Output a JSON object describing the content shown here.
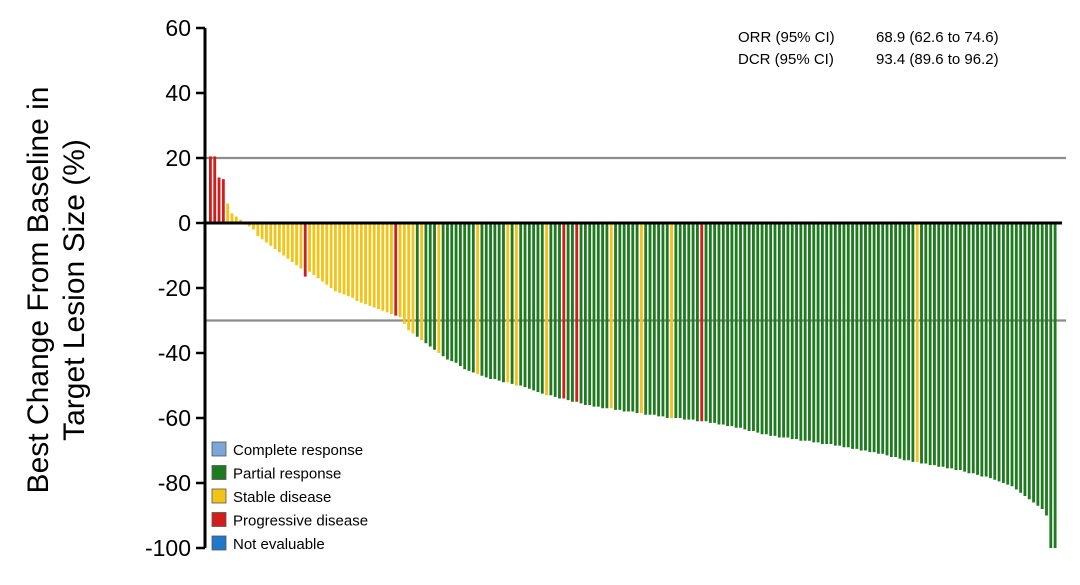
{
  "chart_data": {
    "type": "bar",
    "ylabel_line1": "Best Change From Baseline in",
    "ylabel_line2": "Target Lesion Size (%)",
    "ylim": [
      -100,
      60
    ],
    "yticks": [
      60,
      40,
      20,
      0,
      -20,
      -40,
      -60,
      -80,
      -100
    ],
    "reference_lines": [
      20,
      -30
    ],
    "grid": false,
    "stats": [
      {
        "label": "ORR (95% CI)",
        "value": "68.9 (62.6 to 74.6)"
      },
      {
        "label": "DCR (95% CI)",
        "value": "93.4 (89.6 to 96.2)"
      }
    ],
    "legend_position": "bottom-left",
    "legend": [
      {
        "key": "CR",
        "label": "Complete response",
        "color": "#7aa6d8"
      },
      {
        "key": "PR",
        "label": "Partial response",
        "color": "#1e7a1e"
      },
      {
        "key": "SD",
        "label": "Stable disease",
        "color": "#f2c418"
      },
      {
        "key": "PD",
        "label": "Progressive disease",
        "color": "#d21d1d"
      },
      {
        "key": "NE",
        "label": "Not evaluable",
        "color": "#1f78c8"
      }
    ],
    "bars": [
      {
        "value": 20.5,
        "response": "PD"
      },
      {
        "value": 20.5,
        "response": "PD"
      },
      {
        "value": 14,
        "response": "PD"
      },
      {
        "value": 13.5,
        "response": "PD"
      },
      {
        "value": 6,
        "response": "SD"
      },
      {
        "value": 3,
        "response": "SD"
      },
      {
        "value": 2,
        "response": "SD"
      },
      {
        "value": 1,
        "response": "SD"
      },
      {
        "value": -0.5,
        "response": "SD"
      },
      {
        "value": -1,
        "response": "SD"
      },
      {
        "value": -2,
        "response": "SD"
      },
      {
        "value": -4,
        "response": "SD"
      },
      {
        "value": -5,
        "response": "SD"
      },
      {
        "value": -6,
        "response": "SD"
      },
      {
        "value": -7,
        "response": "SD"
      },
      {
        "value": -8,
        "response": "SD"
      },
      {
        "value": -9,
        "response": "SD"
      },
      {
        "value": -10,
        "response": "SD"
      },
      {
        "value": -11,
        "response": "SD"
      },
      {
        "value": -12,
        "response": "SD"
      },
      {
        "value": -13,
        "response": "SD"
      },
      {
        "value": -14,
        "response": "SD"
      },
      {
        "value": -16.5,
        "response": "PD"
      },
      {
        "value": -15,
        "response": "SD"
      },
      {
        "value": -16,
        "response": "SD"
      },
      {
        "value": -17,
        "response": "SD"
      },
      {
        "value": -18,
        "response": "SD"
      },
      {
        "value": -19,
        "response": "SD"
      },
      {
        "value": -20,
        "response": "SD"
      },
      {
        "value": -21,
        "response": "SD"
      },
      {
        "value": -21.5,
        "response": "SD"
      },
      {
        "value": -22,
        "response": "SD"
      },
      {
        "value": -22.5,
        "response": "SD"
      },
      {
        "value": -23,
        "response": "SD"
      },
      {
        "value": -24,
        "response": "SD"
      },
      {
        "value": -24.5,
        "response": "SD"
      },
      {
        "value": -25,
        "response": "SD"
      },
      {
        "value": -25.5,
        "response": "SD"
      },
      {
        "value": -26,
        "response": "SD"
      },
      {
        "value": -26.5,
        "response": "SD"
      },
      {
        "value": -27,
        "response": "SD"
      },
      {
        "value": -27.5,
        "response": "SD"
      },
      {
        "value": -28,
        "response": "SD"
      },
      {
        "value": -28.5,
        "response": "PD"
      },
      {
        "value": -29,
        "response": "SD"
      },
      {
        "value": -31,
        "response": "SD"
      },
      {
        "value": -33,
        "response": "SD"
      },
      {
        "value": -34,
        "response": "SD"
      },
      {
        "value": -35,
        "response": "PR"
      },
      {
        "value": -36,
        "response": "SD"
      },
      {
        "value": -37,
        "response": "PR"
      },
      {
        "value": -38,
        "response": "PR"
      },
      {
        "value": -39,
        "response": "PR"
      },
      {
        "value": -40,
        "response": "SD"
      },
      {
        "value": -41,
        "response": "PR"
      },
      {
        "value": -42,
        "response": "PR"
      },
      {
        "value": -42.5,
        "response": "PR"
      },
      {
        "value": -43,
        "response": "PR"
      },
      {
        "value": -44,
        "response": "PR"
      },
      {
        "value": -45,
        "response": "PR"
      },
      {
        "value": -45.5,
        "response": "PR"
      },
      {
        "value": -46,
        "response": "PR"
      },
      {
        "value": -46.5,
        "response": "SD"
      },
      {
        "value": -47,
        "response": "PR"
      },
      {
        "value": -47.5,
        "response": "PR"
      },
      {
        "value": -48,
        "response": "PR"
      },
      {
        "value": -48,
        "response": "PR"
      },
      {
        "value": -48.5,
        "response": "PR"
      },
      {
        "value": -49,
        "response": "PR"
      },
      {
        "value": -49,
        "response": "SD"
      },
      {
        "value": -49.5,
        "response": "PR"
      },
      {
        "value": -50,
        "response": "SD"
      },
      {
        "value": -50,
        "response": "PR"
      },
      {
        "value": -50.5,
        "response": "PR"
      },
      {
        "value": -51,
        "response": "PR"
      },
      {
        "value": -51.5,
        "response": "PR"
      },
      {
        "value": -52,
        "response": "PR"
      },
      {
        "value": -52.5,
        "response": "PR"
      },
      {
        "value": -53,
        "response": "SD"
      },
      {
        "value": -53,
        "response": "PR"
      },
      {
        "value": -53.5,
        "response": "PR"
      },
      {
        "value": -54,
        "response": "PR"
      },
      {
        "value": -54,
        "response": "PD"
      },
      {
        "value": -54.5,
        "response": "PR"
      },
      {
        "value": -55,
        "response": "PR"
      },
      {
        "value": -55,
        "response": "PD"
      },
      {
        "value": -55.5,
        "response": "PR"
      },
      {
        "value": -56,
        "response": "PR"
      },
      {
        "value": -56,
        "response": "PR"
      },
      {
        "value": -56.5,
        "response": "PR"
      },
      {
        "value": -56.5,
        "response": "PR"
      },
      {
        "value": -57,
        "response": "PR"
      },
      {
        "value": -57,
        "response": "PR"
      },
      {
        "value": -57,
        "response": "SD"
      },
      {
        "value": -57.5,
        "response": "PR"
      },
      {
        "value": -57.5,
        "response": "PR"
      },
      {
        "value": -58,
        "response": "PR"
      },
      {
        "value": -58,
        "response": "PR"
      },
      {
        "value": -58,
        "response": "PR"
      },
      {
        "value": -58.5,
        "response": "PR"
      },
      {
        "value": -58.5,
        "response": "SD"
      },
      {
        "value": -59,
        "response": "PR"
      },
      {
        "value": -59,
        "response": "PR"
      },
      {
        "value": -59,
        "response": "PR"
      },
      {
        "value": -59.5,
        "response": "PR"
      },
      {
        "value": -59.5,
        "response": "PR"
      },
      {
        "value": -60,
        "response": "PR"
      },
      {
        "value": -60,
        "response": "SD"
      },
      {
        "value": -60,
        "response": "PR"
      },
      {
        "value": -60,
        "response": "PR"
      },
      {
        "value": -60.5,
        "response": "PR"
      },
      {
        "value": -60.5,
        "response": "PR"
      },
      {
        "value": -60.5,
        "response": "PR"
      },
      {
        "value": -61,
        "response": "PR"
      },
      {
        "value": -61,
        "response": "PD"
      },
      {
        "value": -61,
        "response": "PR"
      },
      {
        "value": -61.5,
        "response": "PR"
      },
      {
        "value": -61.5,
        "response": "PR"
      },
      {
        "value": -62,
        "response": "PR"
      },
      {
        "value": -62,
        "response": "PR"
      },
      {
        "value": -62.5,
        "response": "PR"
      },
      {
        "value": -62.5,
        "response": "PR"
      },
      {
        "value": -63,
        "response": "PR"
      },
      {
        "value": -63,
        "response": "PR"
      },
      {
        "value": -63.5,
        "response": "PR"
      },
      {
        "value": -64,
        "response": "PR"
      },
      {
        "value": -64,
        "response": "PR"
      },
      {
        "value": -64.5,
        "response": "PR"
      },
      {
        "value": -65,
        "response": "PR"
      },
      {
        "value": -65,
        "response": "PR"
      },
      {
        "value": -65.5,
        "response": "PR"
      },
      {
        "value": -65.5,
        "response": "PR"
      },
      {
        "value": -66,
        "response": "PR"
      },
      {
        "value": -66,
        "response": "PR"
      },
      {
        "value": -66,
        "response": "PR"
      },
      {
        "value": -66.5,
        "response": "PR"
      },
      {
        "value": -66.5,
        "response": "PR"
      },
      {
        "value": -67,
        "response": "PR"
      },
      {
        "value": -67,
        "response": "PR"
      },
      {
        "value": -67,
        "response": "PR"
      },
      {
        "value": -67.5,
        "response": "PR"
      },
      {
        "value": -67.5,
        "response": "PR"
      },
      {
        "value": -68,
        "response": "PR"
      },
      {
        "value": -68,
        "response": "PR"
      },
      {
        "value": -68,
        "response": "PR"
      },
      {
        "value": -68.5,
        "response": "PR"
      },
      {
        "value": -68.5,
        "response": "PR"
      },
      {
        "value": -69,
        "response": "PR"
      },
      {
        "value": -69,
        "response": "PR"
      },
      {
        "value": -69.5,
        "response": "PR"
      },
      {
        "value": -69.5,
        "response": "PR"
      },
      {
        "value": -70,
        "response": "PR"
      },
      {
        "value": -70,
        "response": "PR"
      },
      {
        "value": -70.5,
        "response": "PR"
      },
      {
        "value": -70.5,
        "response": "PR"
      },
      {
        "value": -71,
        "response": "PR"
      },
      {
        "value": -71,
        "response": "PR"
      },
      {
        "value": -71.5,
        "response": "PR"
      },
      {
        "value": -72,
        "response": "PR"
      },
      {
        "value": -72,
        "response": "PR"
      },
      {
        "value": -72.5,
        "response": "PR"
      },
      {
        "value": -73,
        "response": "PR"
      },
      {
        "value": -73,
        "response": "PR"
      },
      {
        "value": -73.5,
        "response": "PR"
      },
      {
        "value": -73.5,
        "response": "SD"
      },
      {
        "value": -74,
        "response": "PR"
      },
      {
        "value": -74,
        "response": "PR"
      },
      {
        "value": -74.5,
        "response": "PR"
      },
      {
        "value": -74.5,
        "response": "PR"
      },
      {
        "value": -75,
        "response": "PR"
      },
      {
        "value": -75,
        "response": "PR"
      },
      {
        "value": -75.5,
        "response": "PR"
      },
      {
        "value": -75.5,
        "response": "PR"
      },
      {
        "value": -76,
        "response": "PR"
      },
      {
        "value": -76,
        "response": "PR"
      },
      {
        "value": -76.5,
        "response": "PR"
      },
      {
        "value": -77,
        "response": "PR"
      },
      {
        "value": -77,
        "response": "PR"
      },
      {
        "value": -77.5,
        "response": "PR"
      },
      {
        "value": -78,
        "response": "PR"
      },
      {
        "value": -78,
        "response": "PR"
      },
      {
        "value": -78.5,
        "response": "PR"
      },
      {
        "value": -79,
        "response": "PR"
      },
      {
        "value": -79.5,
        "response": "PR"
      },
      {
        "value": -80,
        "response": "PR"
      },
      {
        "value": -80.5,
        "response": "PR"
      },
      {
        "value": -81,
        "response": "PR"
      },
      {
        "value": -82,
        "response": "PR"
      },
      {
        "value": -83,
        "response": "PR"
      },
      {
        "value": -84,
        "response": "PR"
      },
      {
        "value": -85,
        "response": "PR"
      },
      {
        "value": -86,
        "response": "PR"
      },
      {
        "value": -87,
        "response": "PR"
      },
      {
        "value": -88,
        "response": "PR"
      },
      {
        "value": -90,
        "response": "PR"
      },
      {
        "value": -100,
        "response": "PR"
      },
      {
        "value": -100,
        "response": "PR"
      }
    ]
  }
}
